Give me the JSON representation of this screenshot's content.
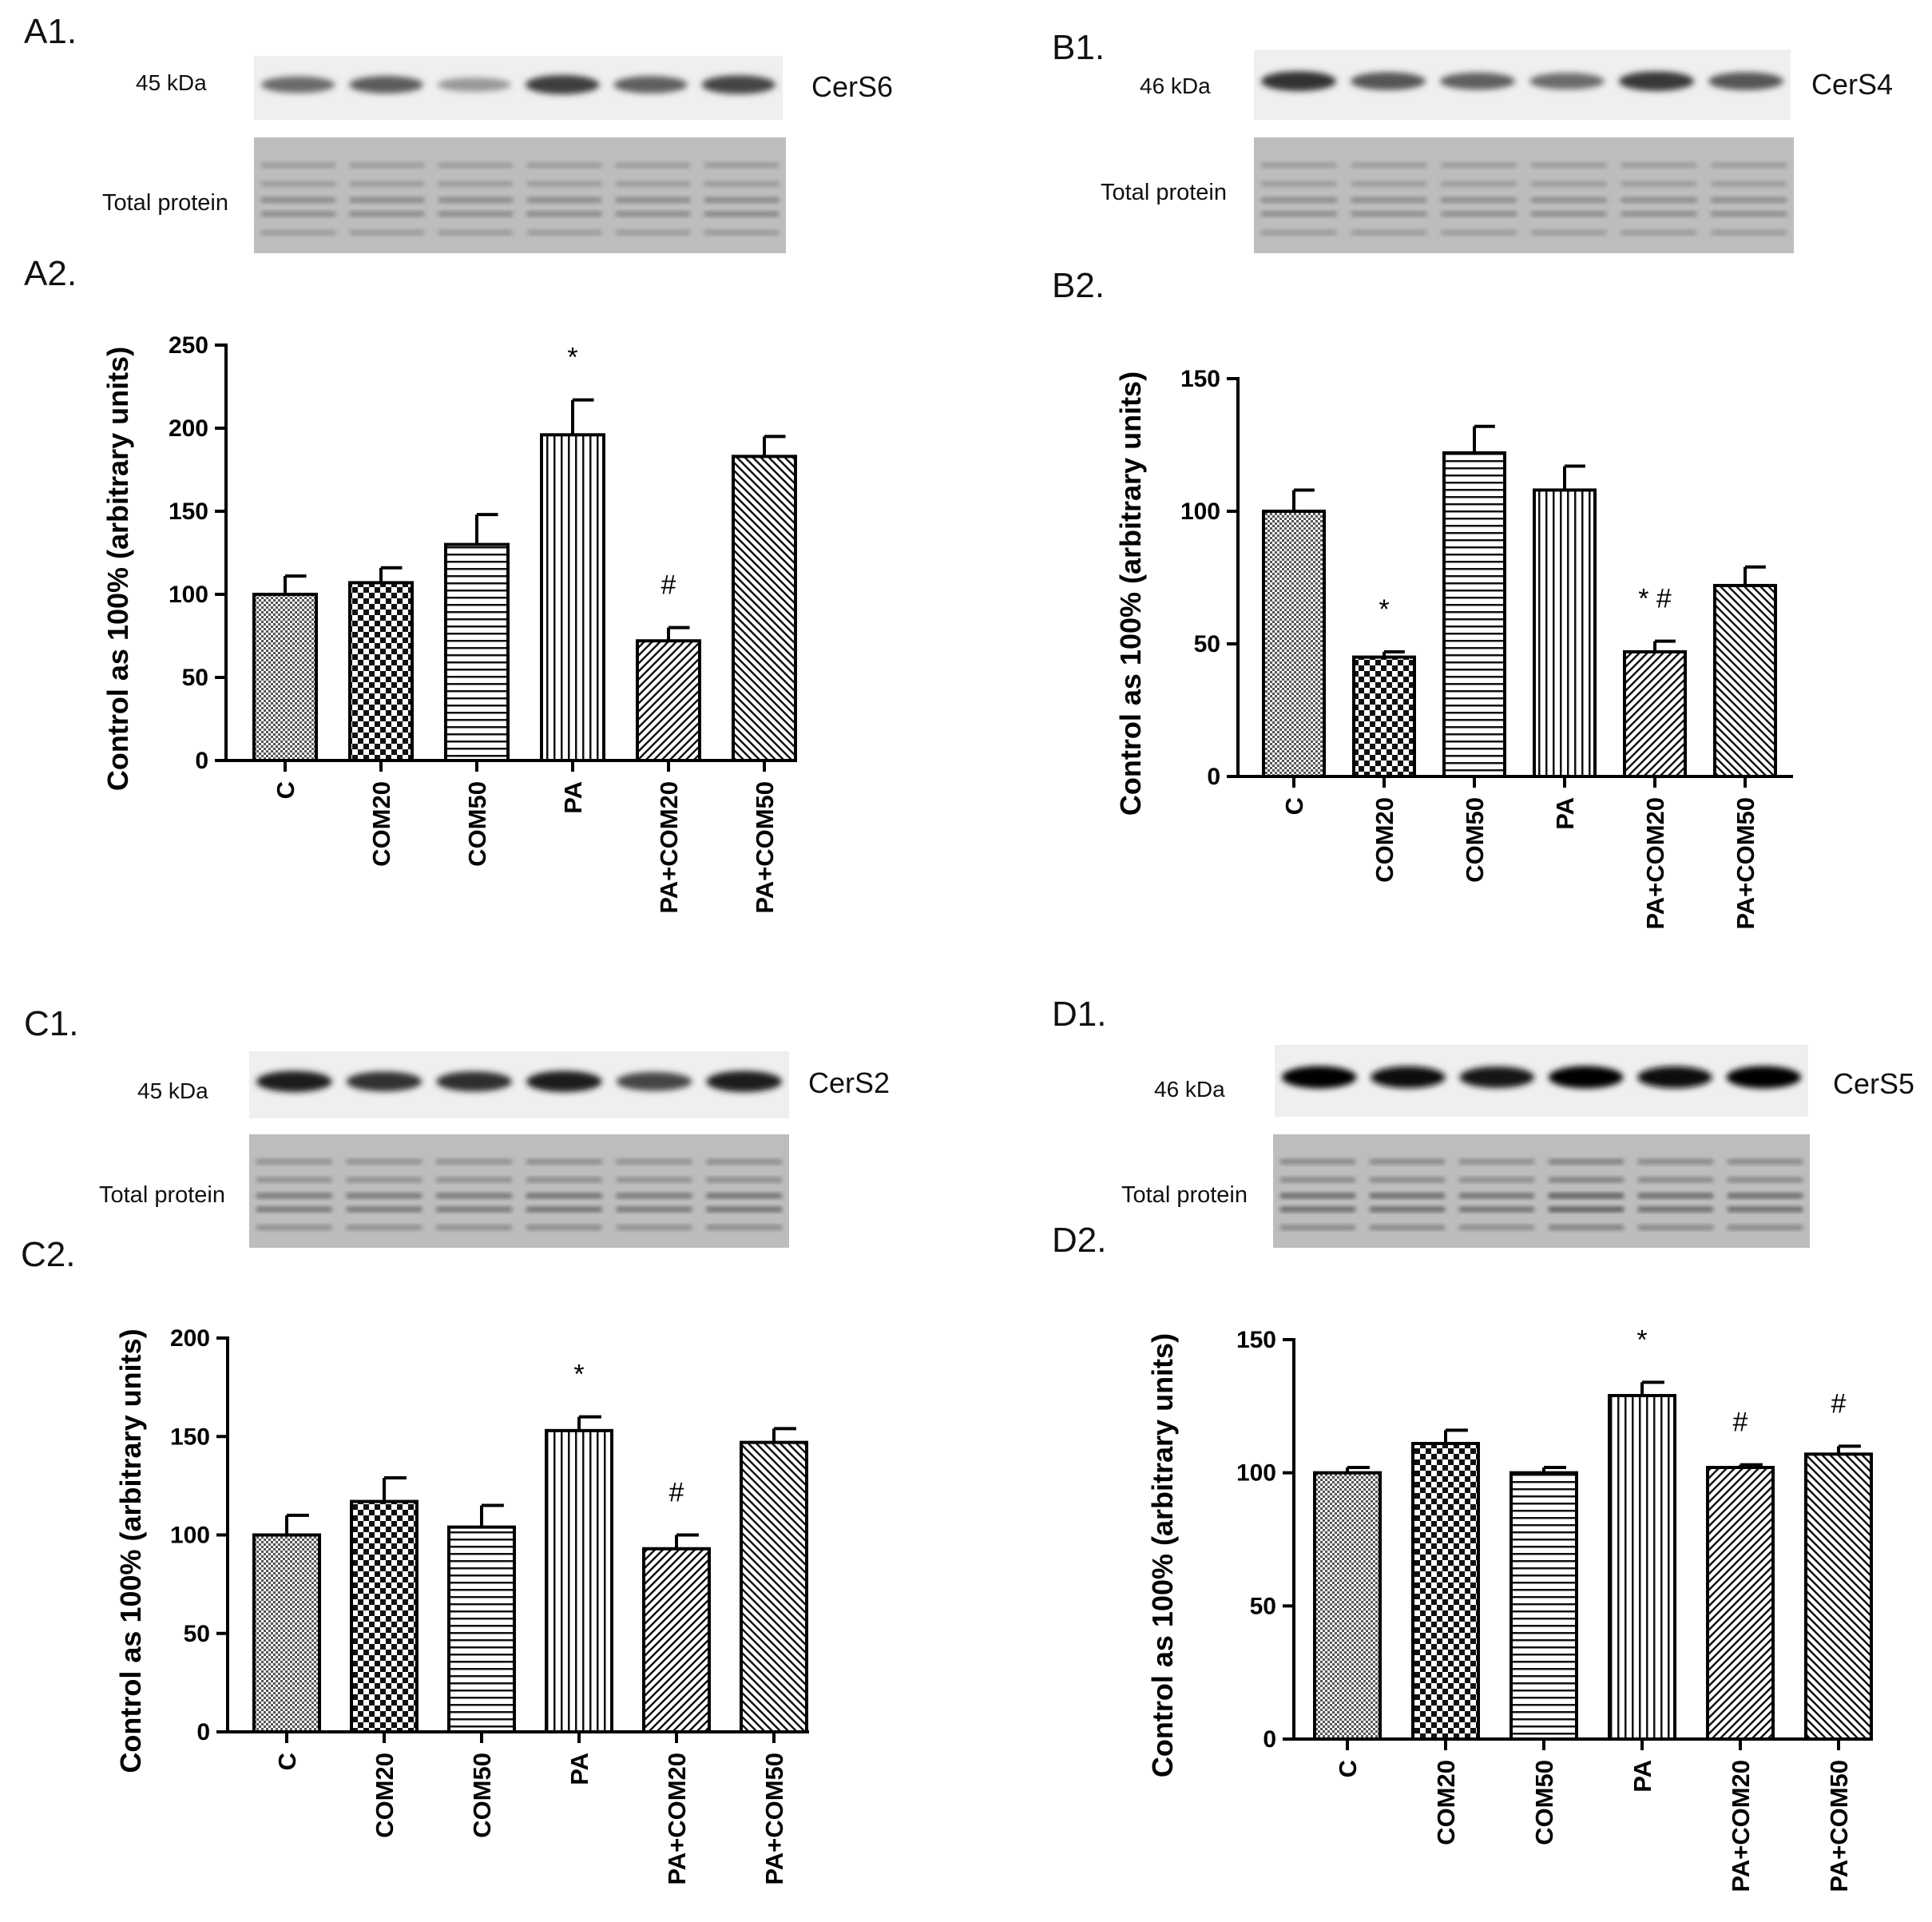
{
  "panels": [
    {
      "id": "A",
      "blot_label": "A1.",
      "chart_label": "A2.",
      "protein": "CerS6",
      "mw": "45 kDa",
      "total_protein_label": "Total protein",
      "band_intensity": [
        0.55,
        0.62,
        0.35,
        0.75,
        0.6,
        0.72
      ],
      "total_protein_intensity": [
        0.3,
        0.3,
        0.3,
        0.3,
        0.3,
        0.32
      ]
    },
    {
      "id": "B",
      "blot_label": "B1.",
      "chart_label": "B2.",
      "protein": "CerS4",
      "mw": "46 kDa",
      "total_protein_label": "Total protein",
      "band_intensity": [
        0.8,
        0.65,
        0.6,
        0.55,
        0.78,
        0.65
      ],
      "total_protein_intensity": [
        0.28,
        0.28,
        0.28,
        0.28,
        0.28,
        0.28
      ]
    },
    {
      "id": "C",
      "blot_label": "C1.",
      "chart_label": "C2.",
      "protein": "CerS2",
      "mw": "45 kDa",
      "total_protein_label": "Total protein",
      "band_intensity": [
        0.9,
        0.8,
        0.82,
        0.9,
        0.72,
        0.9
      ],
      "total_protein_intensity": [
        0.45,
        0.45,
        0.45,
        0.5,
        0.45,
        0.5
      ]
    },
    {
      "id": "D",
      "blot_label": "D1.",
      "chart_label": "D2.",
      "protein": "CerS5",
      "mw": "46 kDa",
      "total_protein_label": "Total protein",
      "band_intensity": [
        1.0,
        0.95,
        0.92,
        1.0,
        0.95,
        1.0
      ],
      "total_protein_intensity": [
        0.55,
        0.55,
        0.5,
        0.65,
        0.55,
        0.55
      ]
    }
  ],
  "chart_data": [
    {
      "type": "bar",
      "panel": "A2.",
      "categories": [
        "C",
        "COM20",
        "COM50",
        "PA",
        "PA+COM20",
        "PA+COM50"
      ],
      "values": [
        100,
        107,
        130,
        196,
        72,
        183
      ],
      "errors": [
        11,
        9,
        18,
        21,
        8,
        12
      ],
      "significance": [
        "",
        "",
        "",
        "*",
        "#",
        ""
      ],
      "patterns": [
        "fine-check",
        "checker",
        "hlines",
        "vlines",
        "diag-fwd",
        "diag-back"
      ],
      "ylabel": "Control as 100% (arbitrary units)",
      "ylim": [
        0,
        250
      ],
      "yticks": [
        0,
        50,
        100,
        150,
        200,
        250
      ]
    },
    {
      "type": "bar",
      "panel": "B2.",
      "categories": [
        "C",
        "COM20",
        "COM50",
        "PA",
        "PA+COM20",
        "PA+COM50"
      ],
      "values": [
        100,
        45,
        122,
        108,
        47,
        72
      ],
      "errors": [
        8,
        2,
        10,
        9,
        4,
        7
      ],
      "significance": [
        "",
        "*",
        "",
        "",
        "* #",
        ""
      ],
      "patterns": [
        "fine-check",
        "checker",
        "hlines",
        "vlines",
        "diag-fwd",
        "diag-back"
      ],
      "ylabel": "Control as 100% (arbitrary units)",
      "ylim": [
        0,
        150
      ],
      "yticks": [
        0,
        50,
        100,
        150
      ]
    },
    {
      "type": "bar",
      "panel": "C2.",
      "categories": [
        "C",
        "COM20",
        "COM50",
        "PA",
        "PA+COM20",
        "PA+COM50"
      ],
      "values": [
        100,
        117,
        104,
        153,
        93,
        147
      ],
      "errors": [
        10,
        12,
        11,
        7,
        7,
        7
      ],
      "significance": [
        "",
        "",
        "",
        "*",
        "#",
        ""
      ],
      "patterns": [
        "fine-check",
        "checker",
        "hlines",
        "vlines",
        "diag-fwd",
        "diag-back"
      ],
      "ylabel": "Control as 100% (arbitrary units)",
      "ylim": [
        0,
        200
      ],
      "yticks": [
        0,
        50,
        100,
        150,
        200
      ]
    },
    {
      "type": "bar",
      "panel": "D2.",
      "categories": [
        "C",
        "COM20",
        "COM50",
        "PA",
        "PA+COM20",
        "PA+COM50"
      ],
      "values": [
        100,
        111,
        100,
        129,
        102,
        107
      ],
      "errors": [
        2,
        5,
        2,
        5,
        1,
        3
      ],
      "significance": [
        "",
        "",
        "",
        "*",
        "#",
        "#"
      ],
      "patterns": [
        "fine-check",
        "checker",
        "hlines",
        "vlines",
        "diag-fwd",
        "diag-back"
      ],
      "ylabel": "Control as 100% (arbitrary units)",
      "ylim": [
        0,
        150
      ],
      "yticks": [
        0,
        50,
        100,
        150
      ]
    }
  ]
}
